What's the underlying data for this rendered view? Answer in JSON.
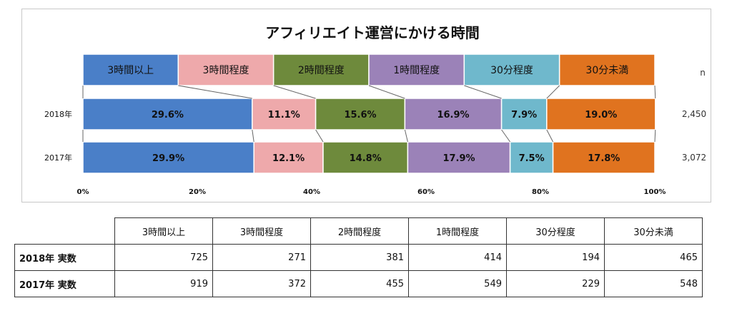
{
  "chart_data": {
    "type": "bar",
    "orientation": "horizontal",
    "stacked": "100%",
    "title": "アフィリエイト運営にかける時間",
    "categories": [
      "2018年",
      "2017年"
    ],
    "n_label": "n",
    "n_values": [
      "2,450",
      "3,072"
    ],
    "series": [
      {
        "name": "3時間以上",
        "values": [
          29.6,
          29.9
        ],
        "labels": [
          "29.6%",
          "29.9%"
        ],
        "color": "#4a7fc8"
      },
      {
        "name": "3時間程度",
        "values": [
          11.1,
          12.1
        ],
        "labels": [
          "11.1%",
          "12.1%"
        ],
        "color": "#eea9ab"
      },
      {
        "name": "2時間程度",
        "values": [
          15.6,
          14.8
        ],
        "labels": [
          "15.6%",
          "14.8%"
        ],
        "color": "#6e8a3c"
      },
      {
        "name": "1時間程度",
        "values": [
          16.9,
          17.9
        ],
        "labels": [
          "16.9%",
          "17.9%"
        ],
        "color": "#9b82b8"
      },
      {
        "name": "30分程度",
        "values": [
          7.9,
          7.5
        ],
        "labels": [
          "7.9%",
          "7.5%"
        ],
        "color": "#6fb8cc"
      },
      {
        "name": "30分未満",
        "values": [
          19.0,
          17.8
        ],
        "labels": [
          "19.0%",
          "17.8%"
        ],
        "color": "#e0731f"
      }
    ],
    "xlim": [
      0,
      100
    ],
    "xticks": [
      "0%",
      "20%",
      "40%",
      "60%",
      "80%",
      "100%"
    ],
    "legend": "top",
    "grid": false
  },
  "table": {
    "headers": [
      "3時間以上",
      "3時間程度",
      "2時間程度",
      "1時間程度",
      "30分程度",
      "30分未満"
    ],
    "rows": [
      {
        "label": "2018年 実数",
        "values": [
          "725",
          "271",
          "381",
          "414",
          "194",
          "465"
        ]
      },
      {
        "label": "2017年 実数",
        "values": [
          "919",
          "372",
          "455",
          "549",
          "229",
          "548"
        ]
      }
    ]
  }
}
